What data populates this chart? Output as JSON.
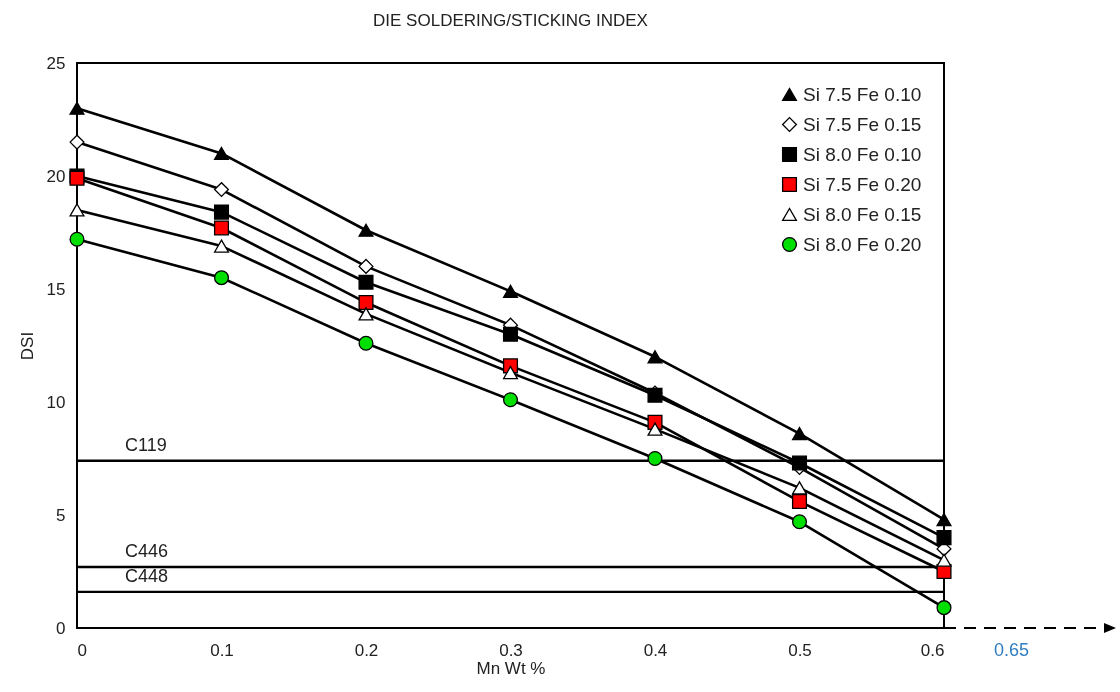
{
  "chart_data": {
    "type": "line",
    "title": "DIE SOLDERING/STICKING INDEX",
    "xlabel": "Mn Wt %",
    "ylabel": "DSI",
    "x": [
      0,
      0.1,
      0.2,
      0.3,
      0.4,
      0.5,
      0.6
    ],
    "xlim": [
      0,
      0.6
    ],
    "xticks": [
      0,
      0.1,
      0.2,
      0.3,
      0.4,
      0.5,
      0.6
    ],
    "ylim": [
      0,
      25
    ],
    "yticks": [
      0,
      5,
      10,
      15,
      20,
      25
    ],
    "grid": false,
    "legend": "top right",
    "series": [
      {
        "name": "Si 7.5 Fe 0.10",
        "color": "#000000",
        "marker": "triangle",
        "values": [
          23.0,
          21.0,
          17.6,
          14.9,
          12.0,
          8.6,
          4.8
        ]
      },
      {
        "name": "Si 7.5 Fe 0.15",
        "color": "#ffffff",
        "marker": "diamond",
        "values": [
          21.5,
          19.4,
          16.0,
          13.4,
          10.4,
          7.1,
          3.5
        ]
      },
      {
        "name": "Si 8.0 Fe 0.10",
        "color": "#000000",
        "marker": "square",
        "values": [
          20.0,
          18.4,
          15.3,
          13.0,
          10.3,
          7.3,
          4.0
        ]
      },
      {
        "name": "Si 7.5 Fe 0.20",
        "color": "#ff0000",
        "marker": "square",
        "values": [
          19.9,
          17.7,
          14.4,
          11.6,
          9.1,
          5.6,
          2.5
        ]
      },
      {
        "name": "Si 8.0 Fe 0.15",
        "color": "#ffffff",
        "marker": "triangle",
        "values": [
          18.5,
          16.9,
          13.9,
          11.3,
          8.8,
          6.2,
          3.0
        ]
      },
      {
        "name": "Si 8.0 Fe 0.20",
        "color": "#00e000",
        "marker": "circle",
        "values": [
          17.2,
          15.5,
          12.6,
          10.1,
          7.5,
          4.7,
          0.9
        ]
      }
    ],
    "ref_lines": [
      {
        "axis": "y",
        "value": 7.4,
        "label": "C119"
      },
      {
        "axis": "y",
        "value": 2.7,
        "label": "C446"
      },
      {
        "axis": "y",
        "value": 1.6,
        "label": "C448"
      }
    ],
    "annotations": [
      "0.65"
    ]
  }
}
